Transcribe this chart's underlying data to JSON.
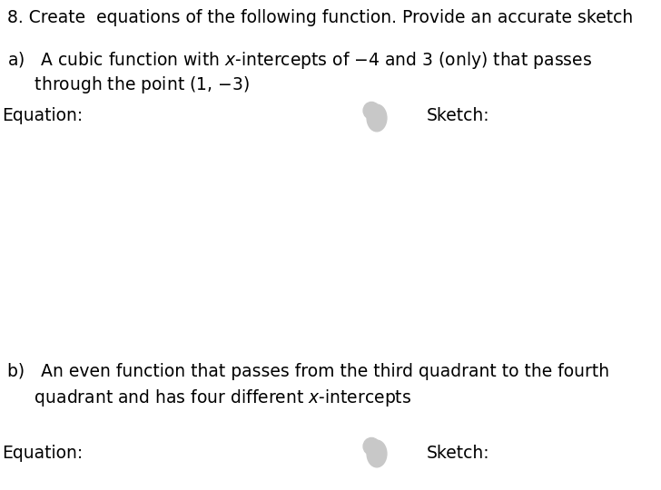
{
  "title": "8. Create  equations of the following function. Provide an accurate sketch",
  "part_a_line1": "a)   A cubic function with $x$-intercepts of −4 and 3 (only) that passes",
  "part_a_line2": "     through the point (1, −3)",
  "part_a_equation": "Equation:",
  "part_a_sketch": "Sketch:",
  "part_b_line1": "b)   An even function that passes from the third quadrant to the fourth",
  "part_b_line2": "     quadrant and has four different $x$-intercepts",
  "part_b_equation": "Equation:",
  "part_b_sketch": "Sketch:",
  "bg_color": "#ffffff",
  "text_color": "#000000",
  "blob_color": "#c8c8c8",
  "title_fontsize": 13.5,
  "body_fontsize": 13.5
}
